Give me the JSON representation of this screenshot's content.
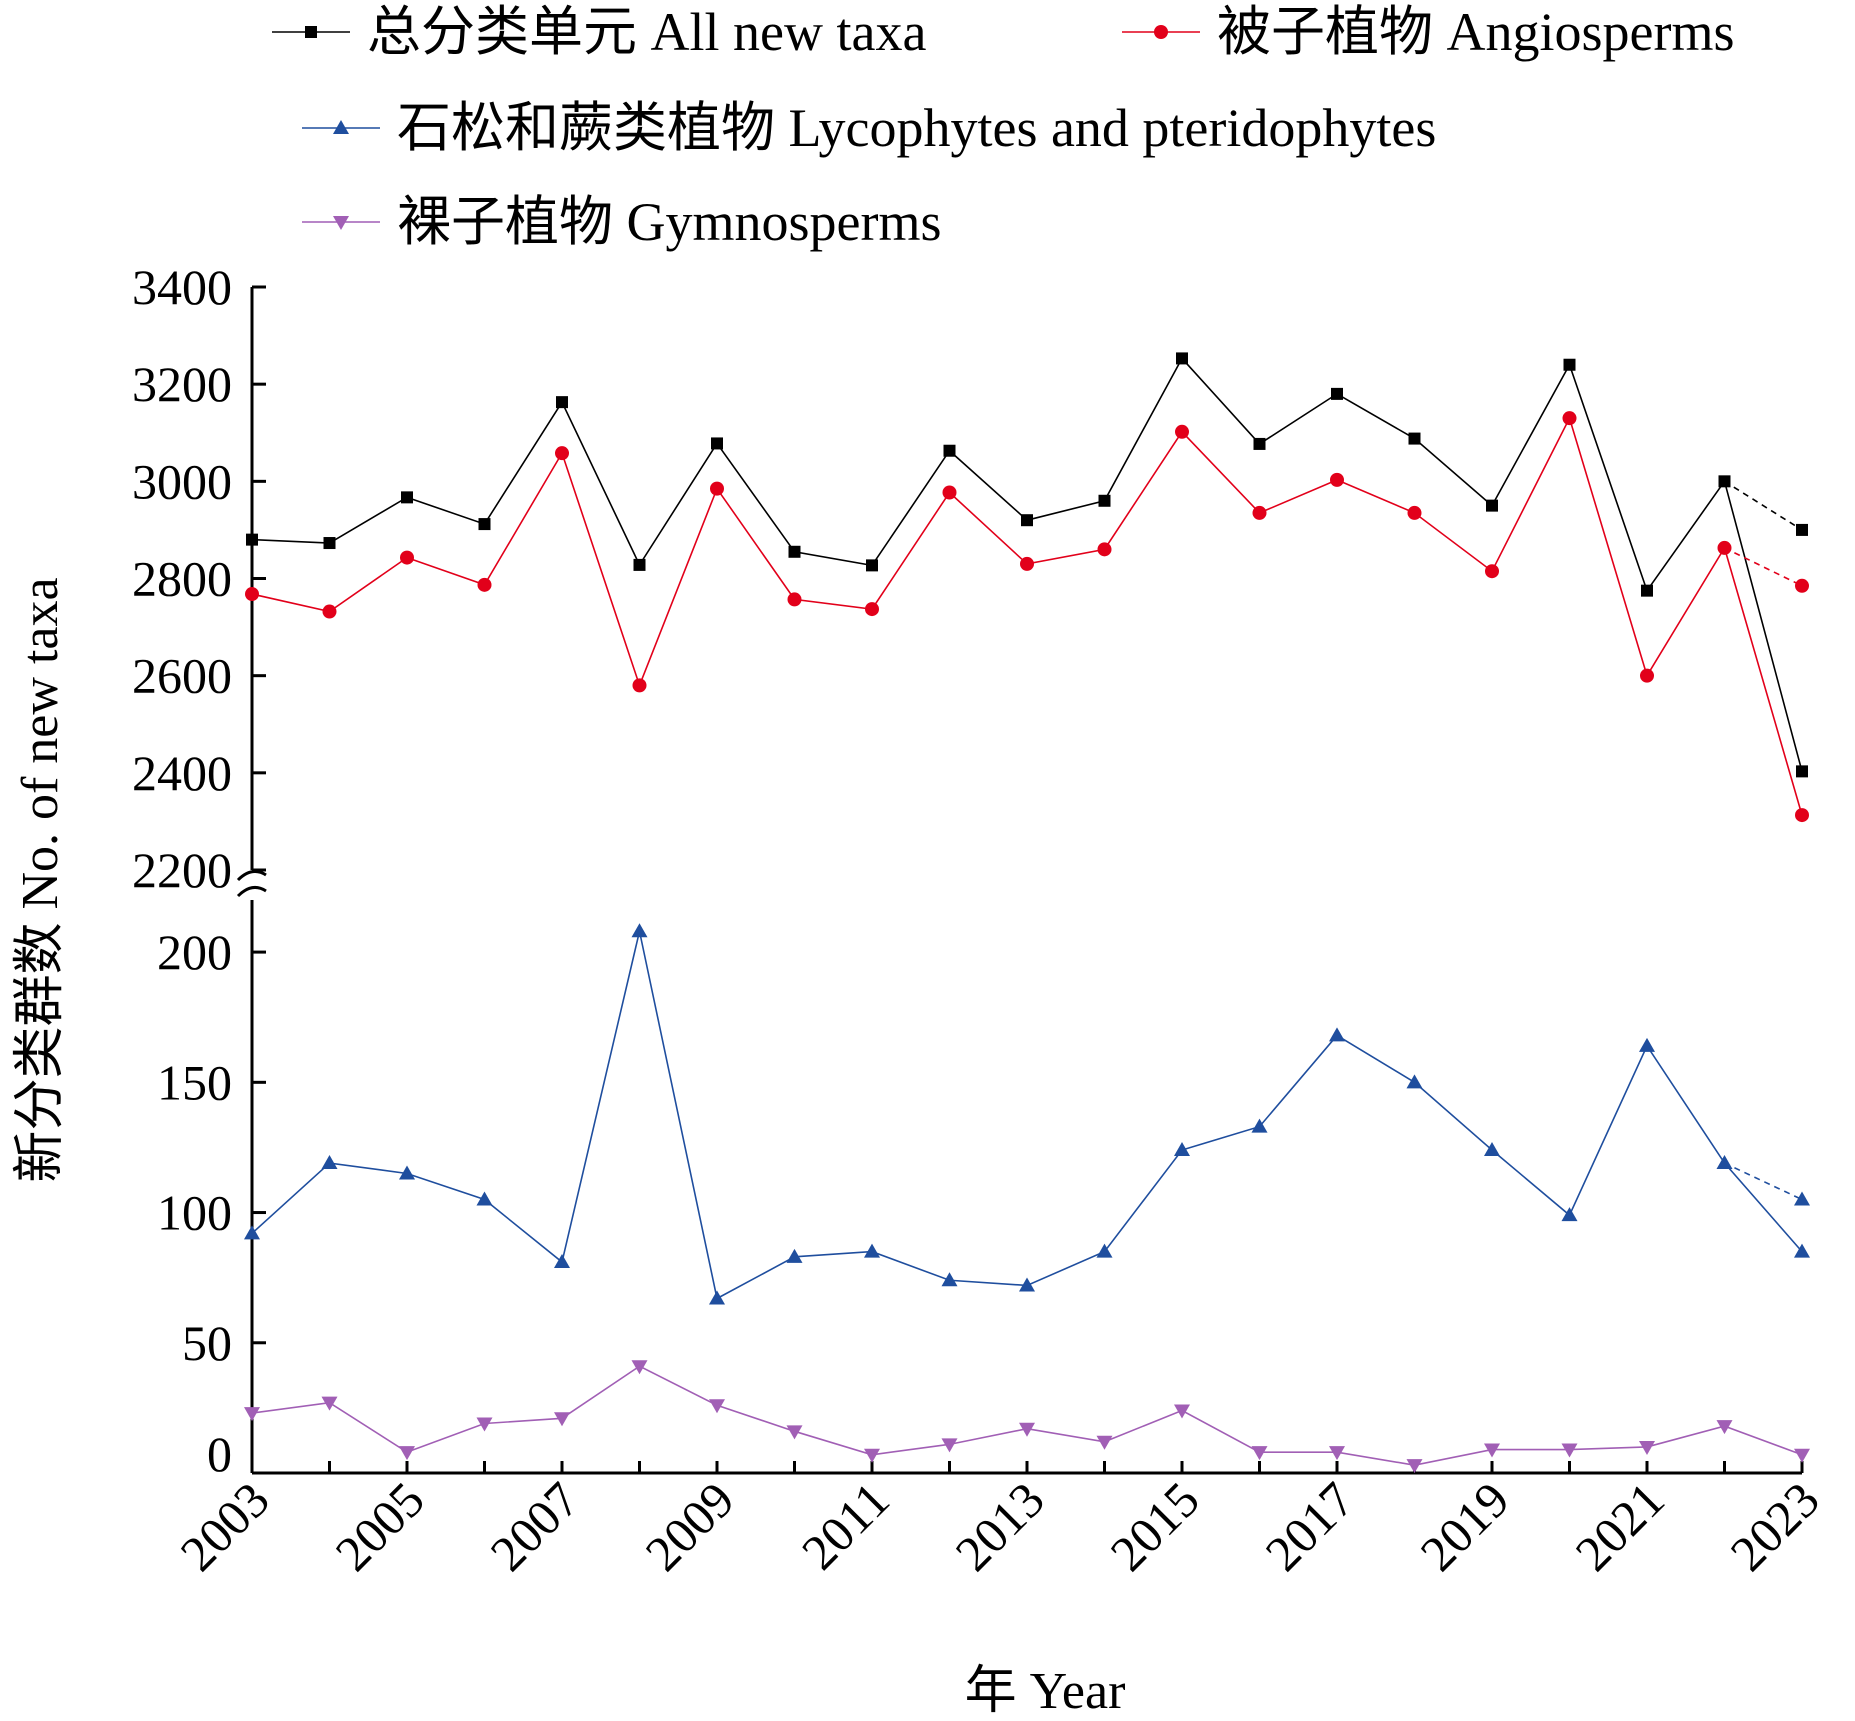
{
  "chart_data": {
    "type": "line",
    "title": "",
    "xlabel": "年 Year",
    "ylabel": "新分类群数 No. of new taxa",
    "x": [
      2003,
      2004,
      2005,
      2006,
      2007,
      2008,
      2009,
      2010,
      2011,
      2012,
      2013,
      2014,
      2015,
      2016,
      2017,
      2018,
      2019,
      2020,
      2021,
      2022,
      2023
    ],
    "x_tick_labels": [
      "2003",
      "2005",
      "2007",
      "2009",
      "2011",
      "2013",
      "2015",
      "2017",
      "2019",
      "2021",
      "2023"
    ],
    "y_upper_range": [
      2200,
      3400
    ],
    "y_upper_ticks": [
      "2200",
      "2400",
      "2600",
      "2800",
      "3000",
      "3200",
      "3400"
    ],
    "y_lower_range": [
      0,
      220
    ],
    "y_lower_ticks": [
      "0",
      "50",
      "100",
      "150",
      "200"
    ],
    "axis_break": "between 2200 and 200",
    "grid": false,
    "legend_position": "top",
    "series": [
      {
        "name": "总分类单元 All new taxa",
        "panel": "upper",
        "marker": "square",
        "color": "#000000",
        "values": [
          2880,
          2873,
          2967,
          2912,
          3163,
          2828,
          3078,
          2855,
          2827,
          3063,
          2920,
          2960,
          3253,
          3077,
          3180,
          3088,
          2950,
          3240,
          2775,
          3000,
          2403
        ],
        "alt_2023_dashed": 2900
      },
      {
        "name": "被子植物 Angiosperms",
        "panel": "upper",
        "marker": "circle",
        "color": "#e2001a",
        "values": [
          2768,
          2732,
          2843,
          2787,
          3058,
          2580,
          2985,
          2757,
          2737,
          2977,
          2830,
          2860,
          3102,
          2935,
          3003,
          2935,
          2815,
          3130,
          2600,
          2863,
          2313
        ],
        "alt_2023_dashed": 2785
      },
      {
        "name": "石松和蕨类植物 Lycophytes and pteridophytes",
        "panel": "lower",
        "marker": "triangle-up",
        "color": "#1f4e9e",
        "values": [
          92,
          119,
          115,
          105,
          81,
          208,
          67,
          83,
          85,
          74,
          72,
          85,
          124,
          133,
          168,
          150,
          124,
          99,
          164,
          119,
          85
        ],
        "alt_2023_dashed": 105
      },
      {
        "name": "裸子植物 Gymnosperms",
        "panel": "lower",
        "marker": "triangle-down",
        "color": "#a15fb5",
        "values": [
          23,
          27,
          8,
          19,
          21,
          41,
          26,
          16,
          7,
          11,
          17,
          12,
          24,
          8,
          8,
          3,
          9,
          9,
          10,
          18,
          7
        ]
      }
    ]
  }
}
